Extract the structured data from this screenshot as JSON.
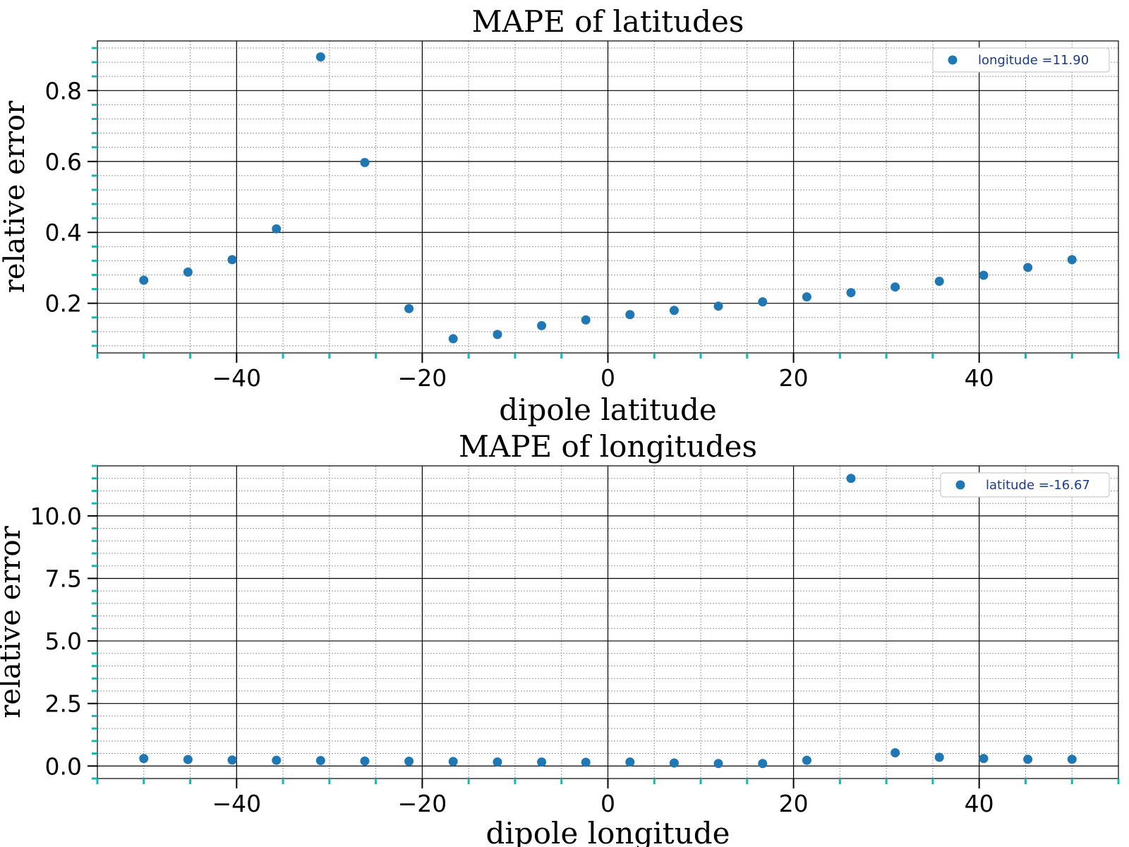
{
  "chart_data": [
    {
      "type": "scatter",
      "title": "MAPE of latitudes",
      "xlabel": "dipole latitude",
      "ylabel": "relative error",
      "xlim": [
        -55,
        55
      ],
      "ylim": [
        0.06,
        0.94
      ],
      "xticks": [
        -40,
        -20,
        0,
        20,
        40
      ],
      "xtick_labels": [
        "−40",
        "−20",
        "0",
        "20",
        "40"
      ],
      "yticks": [
        0.2,
        0.4,
        0.6,
        0.8
      ],
      "ytick_labels": [
        "0.2",
        "0.4",
        "0.6",
        "0.8"
      ],
      "grid": true,
      "legend_position": "top-right",
      "marker_color": "#1f77b4",
      "legend_text_color": "#1a3a8a",
      "minor_tick_color": "#17b8b0",
      "series": [
        {
          "name": "longitude =11.90",
          "x": [
            -50.0,
            -45.24,
            -40.48,
            -35.71,
            -30.95,
            -26.19,
            -21.43,
            -16.67,
            -11.9,
            -7.14,
            -2.38,
            2.38,
            7.14,
            11.9,
            16.67,
            21.43,
            26.19,
            30.95,
            35.71,
            40.48,
            45.24,
            50.0
          ],
          "y": [
            0.265,
            0.288,
            0.323,
            0.41,
            0.895,
            0.597,
            0.185,
            0.1,
            0.112,
            0.137,
            0.153,
            0.168,
            0.18,
            0.192,
            0.204,
            0.218,
            0.23,
            0.246,
            0.262,
            0.279,
            0.301,
            0.323
          ]
        }
      ]
    },
    {
      "type": "scatter",
      "title": "MAPE of longitudes",
      "xlabel": "dipole longitude",
      "ylabel": "relative error",
      "xlim": [
        -55,
        55
      ],
      "ylim": [
        -0.5,
        12.0
      ],
      "xticks": [
        -40,
        -20,
        0,
        20,
        40
      ],
      "xtick_labels": [
        "−40",
        "−20",
        "0",
        "20",
        "40"
      ],
      "yticks": [
        0.0,
        2.5,
        5.0,
        7.5,
        10.0
      ],
      "ytick_labels": [
        "0.0",
        "2.5",
        "5.0",
        "7.5",
        "10.0"
      ],
      "grid": true,
      "legend_position": "top-right",
      "marker_color": "#1f77b4",
      "legend_text_color": "#1a3a8a",
      "minor_tick_color": "#17b8b0",
      "series": [
        {
          "name": "latitude =-16.67",
          "x": [
            -50.0,
            -45.24,
            -40.48,
            -35.71,
            -30.95,
            -26.19,
            -21.43,
            -16.67,
            -11.9,
            -7.14,
            -2.38,
            2.38,
            7.14,
            11.9,
            16.67,
            21.43,
            26.19,
            30.95,
            35.71,
            40.48,
            45.24,
            50.0
          ],
          "y": [
            0.3,
            0.26,
            0.24,
            0.23,
            0.22,
            0.2,
            0.19,
            0.18,
            0.16,
            0.16,
            0.15,
            0.16,
            0.12,
            0.1,
            0.1,
            0.23,
            11.5,
            0.53,
            0.35,
            0.3,
            0.27,
            0.27
          ]
        }
      ]
    }
  ]
}
